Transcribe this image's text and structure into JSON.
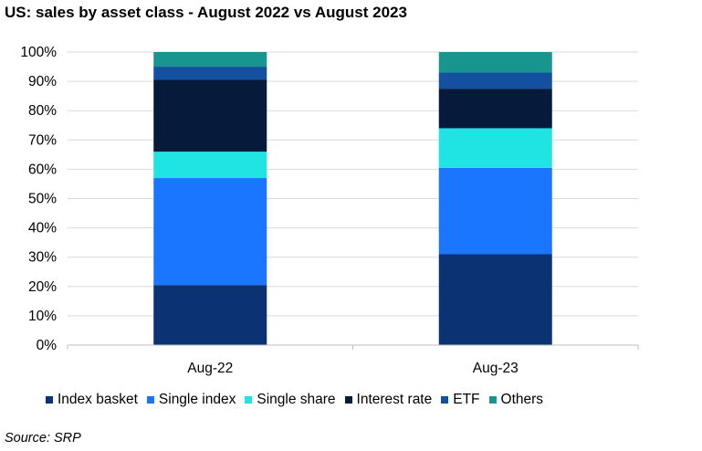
{
  "title": "US: sales by asset class - August 2022 vs August 2023",
  "source": "Source: SRP",
  "chart_data": {
    "type": "bar",
    "stacked": true,
    "categories": [
      "Aug-22",
      "Aug-23"
    ],
    "series": [
      {
        "name": "Index basket",
        "values": [
          20.5,
          31
        ],
        "color": "#0b3273"
      },
      {
        "name": "Single index",
        "values": [
          36.5,
          29.5
        ],
        "color": "#1a75ff"
      },
      {
        "name": "Single share",
        "values": [
          9,
          13.5
        ],
        "color": "#20e4e4"
      },
      {
        "name": "Interest rate",
        "values": [
          24.5,
          13.5
        ],
        "color": "#061a3c"
      },
      {
        "name": "ETF",
        "values": [
          4.5,
          5.5
        ],
        "color": "#1450a0"
      },
      {
        "name": "Others",
        "values": [
          5,
          7
        ],
        "color": "#199590"
      }
    ],
    "ylim": [
      0,
      100
    ],
    "yticks": [
      "0%",
      "10%",
      "20%",
      "30%",
      "40%",
      "50%",
      "60%",
      "70%",
      "80%",
      "90%",
      "100%"
    ],
    "grid": true,
    "legend_position": "bottom",
    "xlabel": "",
    "ylabel": ""
  }
}
